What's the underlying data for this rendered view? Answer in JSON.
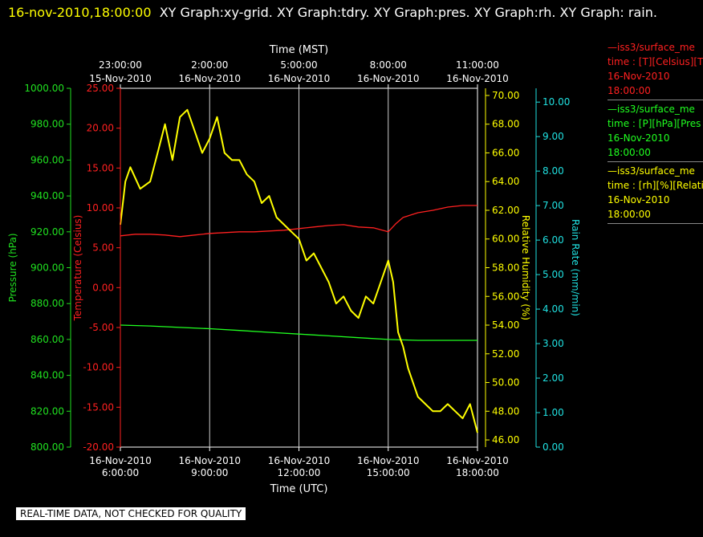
{
  "header": {
    "timestamp": "16-nov-2010,18:00:00",
    "graphs": "XY Graph:xy-grid.  XY Graph:tdry.  XY Graph:pres.  XY Graph:rh.  XY Graph: rain."
  },
  "legend": [
    {
      "line1": "—iss3/surface_me",
      "line2": "time : [T][Celsius][T",
      "line3": "16-Nov-2010",
      "line4": "18:00:00",
      "color": "#ff2020"
    },
    {
      "line1": "—iss3/surface_me",
      "line2": "time : [P][hPa][Pres",
      "line3": "16-Nov-2010",
      "line4": "18:00:00",
      "color": "#20ff20"
    },
    {
      "line1": "—iss3/surface_me",
      "line2": "time : [rh][%][Relati",
      "line3": "16-Nov-2010",
      "line4": "18:00:00",
      "color": "#ffff00"
    }
  ],
  "footer_note": "REAL-TIME DATA, NOT CHECKED FOR QUALITY",
  "chart_data": {
    "type": "line",
    "x_bottom": {
      "label": "Time (UTC)",
      "ticks": [
        {
          "date": "16-Nov-2010",
          "time": "6:00:00"
        },
        {
          "date": "16-Nov-2010",
          "time": "9:00:00"
        },
        {
          "date": "16-Nov-2010",
          "time": "12:00:00"
        },
        {
          "date": "16-Nov-2010",
          "time": "15:00:00"
        },
        {
          "date": "16-Nov-2010",
          "time": "18:00:00"
        }
      ],
      "range": [
        "16-Nov-2010 06:00:00",
        "16-Nov-2010 18:00:00"
      ]
    },
    "x_top": {
      "label": "Time (MST)",
      "ticks": [
        {
          "time": "23:00:00",
          "date": "15-Nov-2010"
        },
        {
          "time": "2:00:00",
          "date": "16-Nov-2010"
        },
        {
          "time": "5:00:00",
          "date": "16-Nov-2010"
        },
        {
          "time": "8:00:00",
          "date": "16-Nov-2010"
        },
        {
          "time": "11:00:00",
          "date": "16-Nov-2010"
        }
      ]
    },
    "axes": {
      "pressure": {
        "label": "Pressure (hPa)",
        "color": "#20e020",
        "ylim": [
          800,
          1000
        ],
        "ticks": [
          "800.00",
          "820.00",
          "840.00",
          "860.00",
          "880.00",
          "900.00",
          "920.00",
          "940.00",
          "960.00",
          "980.00",
          "1000.00"
        ]
      },
      "temperature": {
        "label": "Temperature (Celsius)",
        "color": "#ff2020",
        "ylim": [
          -20,
          25
        ],
        "ticks": [
          "-20.00",
          "-15.00",
          "-10.00",
          "-5.00",
          "0.00",
          "5.00",
          "10.00",
          "15.00",
          "20.00",
          "25.00"
        ]
      },
      "rh": {
        "label": "Relative Humidity (%)",
        "color": "#ffff00",
        "ylim": [
          45.5,
          70.5
        ],
        "ticks": [
          "46.00",
          "48.00",
          "50.00",
          "52.00",
          "54.00",
          "56.00",
          "58.00",
          "60.00",
          "62.00",
          "64.00",
          "66.00",
          "68.00",
          "70.00"
        ]
      },
      "rain": {
        "label": "Rain Rate (mm/min)",
        "color": "#20e0e0",
        "ylim": [
          0,
          10.4
        ],
        "ticks": [
          "0.00",
          "1.00",
          "2.00",
          "3.00",
          "4.00",
          "5.00",
          "6.00",
          "7.00",
          "8.00",
          "9.00",
          "10.00"
        ]
      }
    },
    "series": [
      {
        "name": "Temperature",
        "axis": "temperature",
        "color": "#ff2020",
        "x": [
          "06:00",
          "06:30",
          "07:00",
          "07:30",
          "08:00",
          "08:30",
          "09:00",
          "09:30",
          "10:00",
          "10:30",
          "11:00",
          "11:30",
          "12:00",
          "12:30",
          "13:00",
          "13:30",
          "14:00",
          "14:30",
          "15:00",
          "15:15",
          "15:30",
          "16:00",
          "16:30",
          "17:00",
          "17:30",
          "18:00"
        ],
        "values": [
          6.5,
          6.7,
          6.7,
          6.6,
          6.4,
          6.6,
          6.8,
          6.9,
          7.0,
          7.0,
          7.1,
          7.2,
          7.4,
          7.6,
          7.8,
          7.9,
          7.6,
          7.5,
          7.0,
          8.0,
          8.8,
          9.4,
          9.7,
          10.1,
          10.3,
          10.3
        ]
      },
      {
        "name": "Pressure",
        "axis": "pressure",
        "color": "#20ff20",
        "x": [
          "06:00",
          "07:00",
          "08:00",
          "09:00",
          "10:00",
          "11:00",
          "12:00",
          "13:00",
          "14:00",
          "15:00",
          "16:00",
          "17:00",
          "18:00"
        ],
        "values": [
          868,
          867.5,
          866.7,
          866,
          865,
          864,
          863,
          862,
          861,
          860,
          859.5,
          859.5,
          859.5
        ]
      },
      {
        "name": "Relative Humidity",
        "axis": "rh",
        "color": "#ffff00",
        "x": [
          "06:00",
          "06:10",
          "06:20",
          "06:40",
          "07:00",
          "07:15",
          "07:30",
          "07:45",
          "08:00",
          "08:15",
          "08:30",
          "08:45",
          "09:00",
          "09:15",
          "09:30",
          "09:45",
          "10:00",
          "10:15",
          "10:30",
          "10:45",
          "11:00",
          "11:15",
          "11:30",
          "11:45",
          "12:00",
          "12:15",
          "12:30",
          "12:45",
          "13:00",
          "13:15",
          "13:30",
          "13:45",
          "14:00",
          "14:15",
          "14:30",
          "14:45",
          "15:00",
          "15:10",
          "15:20",
          "15:30",
          "15:40",
          "16:00",
          "16:15",
          "16:30",
          "16:45",
          "17:00",
          "17:15",
          "17:30",
          "17:45",
          "18:00"
        ],
        "values": [
          61,
          64,
          65,
          63.5,
          64,
          66,
          68,
          65.5,
          68.5,
          69,
          67.5,
          66,
          67,
          68.5,
          66,
          65.5,
          65.5,
          64.5,
          64,
          62.5,
          63,
          61.5,
          61,
          60.5,
          60,
          58.5,
          59,
          58,
          57,
          55.5,
          56,
          55,
          54.5,
          56,
          55.5,
          57,
          58.5,
          57,
          53.5,
          52.5,
          51,
          49,
          48.5,
          48,
          48,
          48.5,
          48,
          47.5,
          48.5,
          46.5
        ]
      },
      {
        "name": "Rain Rate",
        "axis": "rain",
        "x": [
          "06:00",
          "18:00"
        ],
        "values": [
          0,
          0
        ]
      }
    ]
  }
}
